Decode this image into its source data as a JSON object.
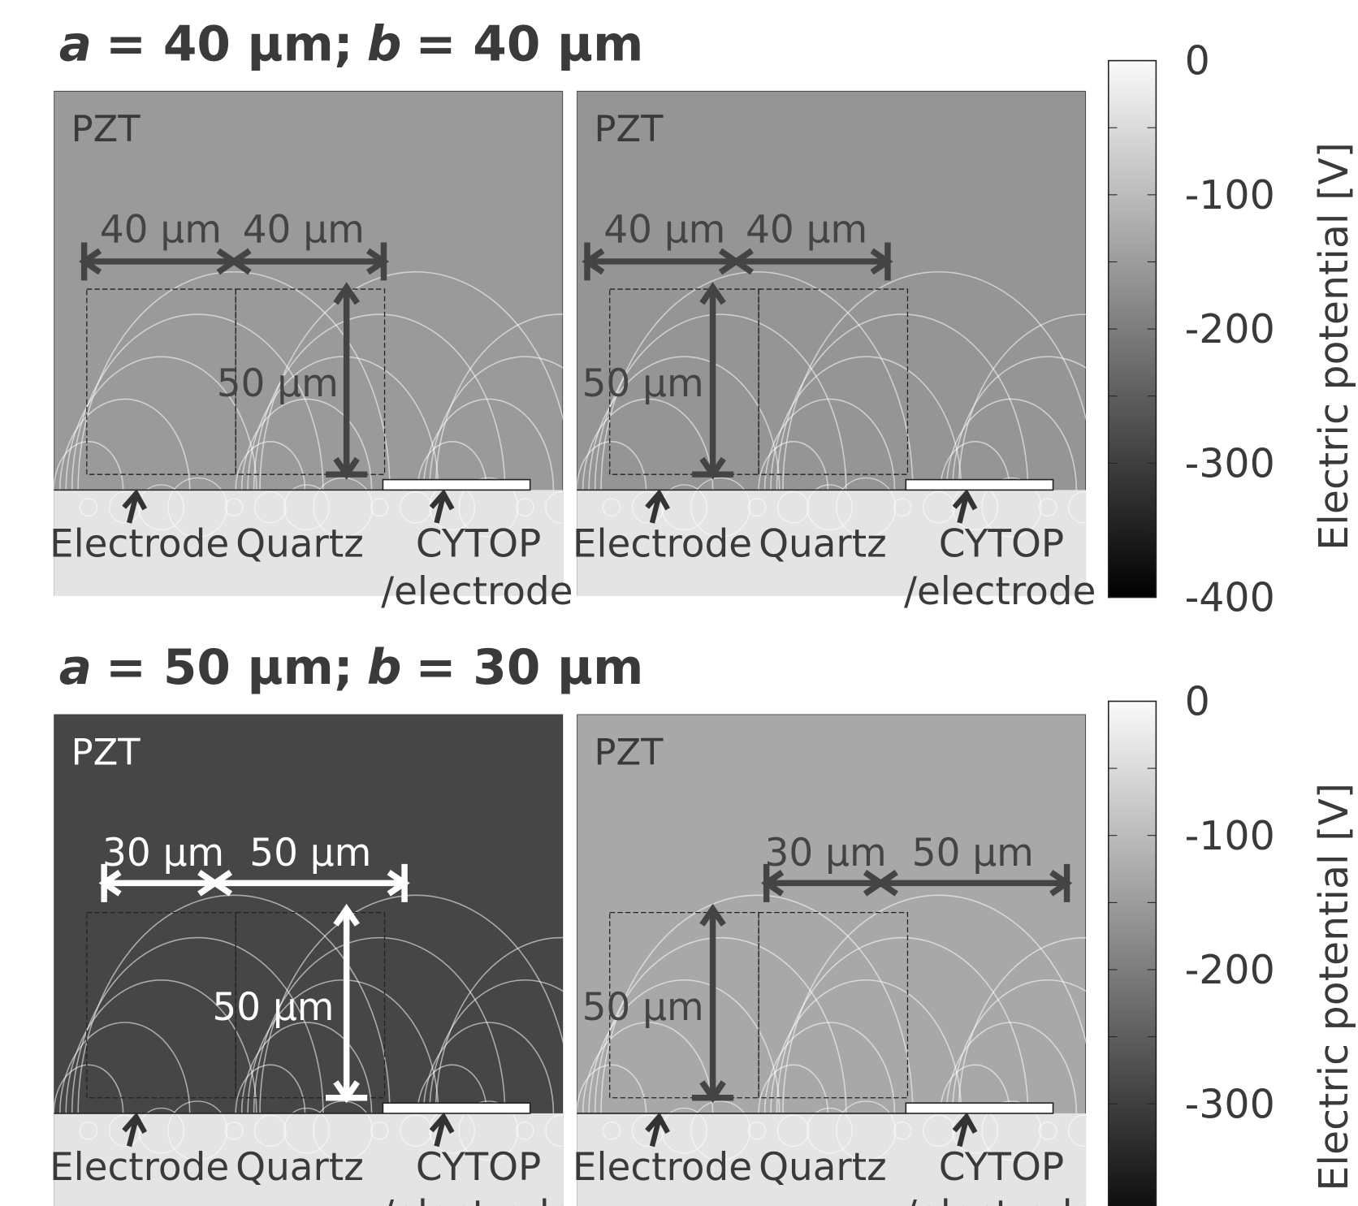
{
  "figure": {
    "rows": [
      {
        "title": {
          "a": "a",
          "a_text": "= 40 µm;",
          "b": "b",
          "b_text": "= 40 µm"
        },
        "panels": [
          {
            "material": "PZT",
            "dim_left": "40 µm",
            "dim_right": "40 µm",
            "dim_height": "50 µm",
            "electrode": "Electrode",
            "quartz": "Quartz",
            "cytop": "CYTOP",
            "cytop2": "/electrode"
          },
          {
            "material": "PZT",
            "dim_left": "40 µm",
            "dim_right": "40 µm",
            "dim_height": "50 µm",
            "electrode": "Electrode",
            "quartz": "Quartz",
            "cytop": "CYTOP",
            "cytop2": "/electrode"
          }
        ],
        "colorbar": {
          "ticks": [
            "0",
            "-100",
            "-200",
            "-300",
            "-400"
          ],
          "label": "Electric potential [V]"
        }
      },
      {
        "title": {
          "a": "a",
          "a_text": "= 50 µm;",
          "b": "b",
          "b_text": "= 30 µm"
        },
        "panels": [
          {
            "material": "PZT",
            "dim_left": "30 µm",
            "dim_right": "50 µm",
            "dim_height": "50 µm",
            "electrode": "Electrode",
            "quartz": "Quartz",
            "cytop": "CYTOP",
            "cytop2": "/electrode"
          },
          {
            "material": "PZT",
            "dim_left": "30 µm",
            "dim_right": "50 µm",
            "dim_height": "50 µm",
            "electrode": "Electrode",
            "quartz": "Quartz",
            "cytop": "CYTOP",
            "cytop2": "/electrode"
          }
        ],
        "colorbar": {
          "ticks": [
            "0",
            "-100",
            "-200",
            "-300"
          ],
          "label": "Electric potential [V]"
        }
      }
    ]
  }
}
